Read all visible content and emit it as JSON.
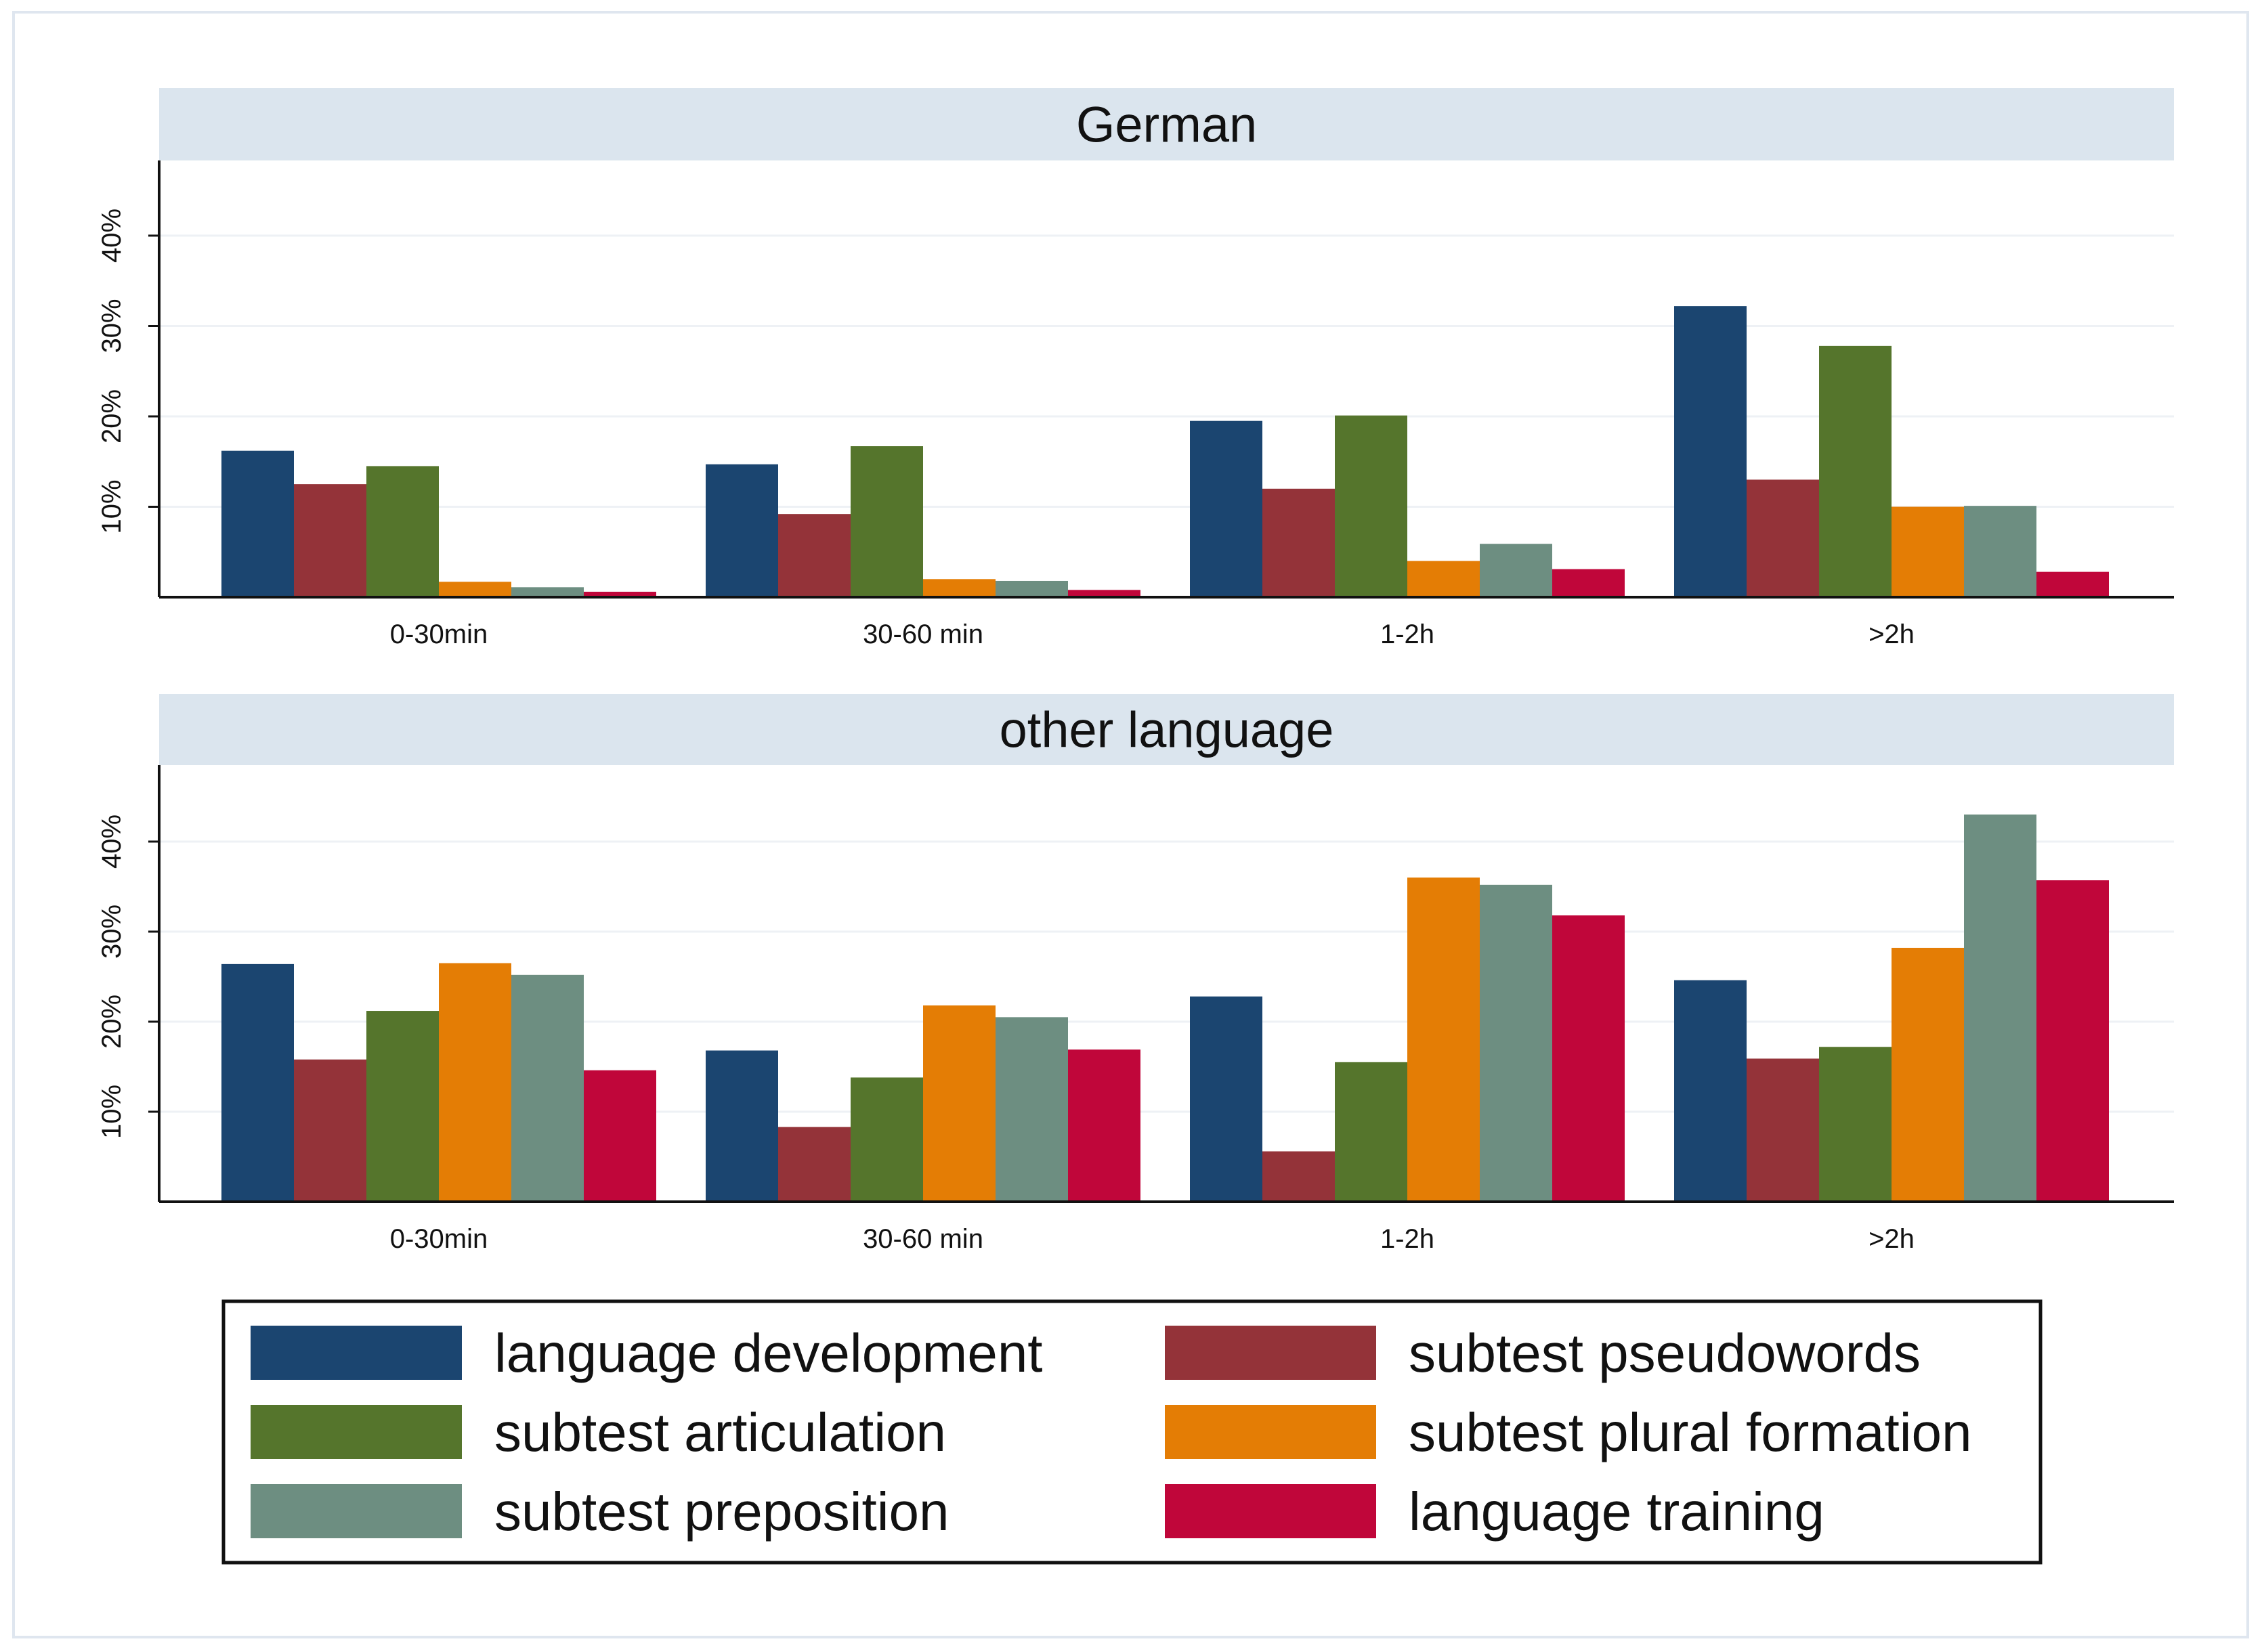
{
  "chart_data": {
    "type": "bar",
    "categories": [
      "0-30min",
      "30-60 min",
      "1-2h",
      ">2h"
    ],
    "y_ticks": [
      "10%",
      "20%",
      "30%",
      "40%"
    ],
    "y_tick_values": [
      10,
      20,
      30,
      40
    ],
    "legend_position": "bottom",
    "series_colors": [
      "#1b4570",
      "#943339",
      "#55752c",
      "#e47d05",
      "#6d8e81",
      "#c0063a"
    ],
    "legend": [
      "language development",
      "subtest pseudowords",
      "subtest articulation",
      "subtest plural formation",
      "subtest preposition",
      "language training"
    ],
    "panels": [
      {
        "title": "German",
        "ylim": [
          0,
          48
        ],
        "series": [
          {
            "name": "language development",
            "values": [
              16.2,
              14.7,
              19.5,
              32.2
            ]
          },
          {
            "name": "subtest pseudowords",
            "values": [
              12.5,
              9.2,
              12.0,
              13.0
            ]
          },
          {
            "name": "subtest articulation",
            "values": [
              14.5,
              16.7,
              20.1,
              27.8
            ]
          },
          {
            "name": "subtest plural formation",
            "values": [
              1.7,
              2.0,
              4.0,
              10.0
            ]
          },
          {
            "name": "subtest preposition",
            "values": [
              1.1,
              1.8,
              5.9,
              10.1
            ]
          },
          {
            "name": "language training",
            "values": [
              0.6,
              0.8,
              3.1,
              2.8
            ]
          }
        ]
      },
      {
        "title": "other language",
        "ylim": [
          0,
          48
        ],
        "series": [
          {
            "name": "language development",
            "values": [
              26.4,
              16.8,
              22.8,
              24.6
            ]
          },
          {
            "name": "subtest pseudowords",
            "values": [
              15.8,
              8.3,
              5.6,
              15.9
            ]
          },
          {
            "name": "subtest articulation",
            "values": [
              21.2,
              13.8,
              15.5,
              17.2
            ]
          },
          {
            "name": "subtest plural formation",
            "values": [
              26.5,
              21.8,
              36.0,
              28.2
            ]
          },
          {
            "name": "subtest preposition",
            "values": [
              25.2,
              20.5,
              35.2,
              43.0
            ]
          },
          {
            "name": "language training",
            "values": [
              14.6,
              16.9,
              31.8,
              35.7
            ]
          }
        ]
      }
    ]
  }
}
